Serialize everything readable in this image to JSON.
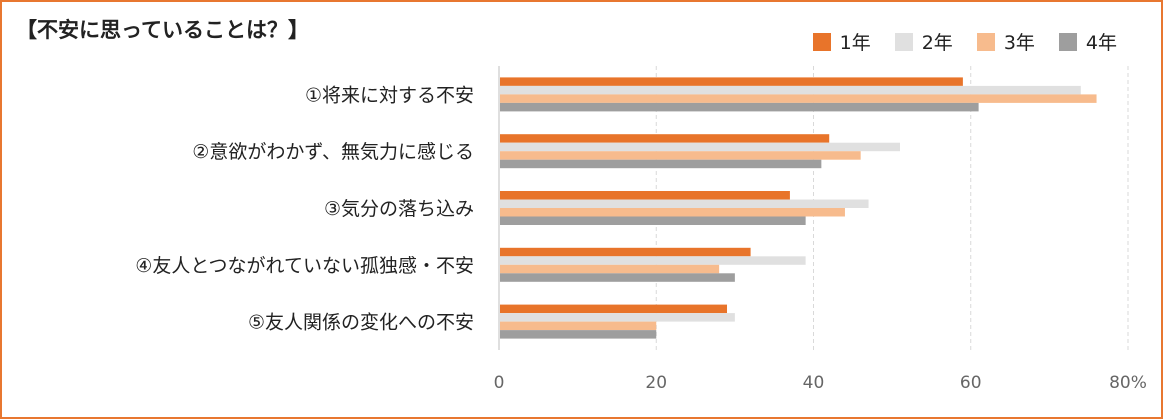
{
  "chart_data": {
    "type": "bar",
    "orientation": "horizontal",
    "title": "【不安に思っていることは？】",
    "categories": [
      "①将来に対する不安",
      "②意欲がわかず、無気力に感じる",
      "③気分の落ち込み",
      "④友人とつながれていない孤独感・不安",
      "⑤友人関係の変化への不安"
    ],
    "series": [
      {
        "name": "1年",
        "color": "#e8742a",
        "values": [
          59,
          42,
          37,
          32,
          29
        ]
      },
      {
        "name": "2年",
        "color": "#e0e0e0",
        "values": [
          74,
          51,
          47,
          39,
          30
        ]
      },
      {
        "name": "3年",
        "color": "#f7bb8d",
        "values": [
          76,
          46,
          44,
          28,
          20
        ]
      },
      {
        "name": "4年",
        "color": "#9e9e9e",
        "values": [
          61,
          41,
          39,
          30,
          20
        ]
      }
    ],
    "xlim": [
      0,
      80
    ],
    "x_ticks": [
      "0",
      "20",
      "40",
      "60",
      "80%"
    ],
    "grid": true,
    "legend_position": "top-right"
  }
}
